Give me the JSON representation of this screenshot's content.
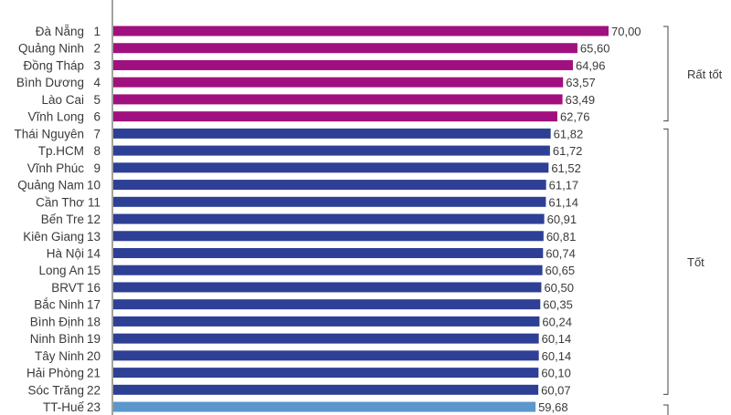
{
  "chart_data": {
    "type": "bar",
    "orientation": "horizontal",
    "provinces": [
      "Đà Nẵng",
      "Quảng Ninh",
      "Đồng Tháp",
      "Bình Dương",
      "Lào Cai",
      "Vĩnh Long",
      "Thái Nguyên",
      "Tp.HCM",
      "Vĩnh Phúc",
      "Quảng Nam",
      "Cần Thơ",
      "Bến Tre",
      "Kiên Giang",
      "Hà Nội",
      "Long An",
      "BRVT",
      "Bắc Ninh",
      "Bình Định",
      "Ninh Bình",
      "Tây Ninh",
      "Hải Phòng",
      "Sóc Trăng",
      "TT-Huế"
    ],
    "ranks": [
      "1",
      "2",
      "3",
      "4",
      "5",
      "6",
      "7",
      "8",
      "9",
      "10",
      "11",
      "12",
      "13",
      "14",
      "15",
      "16",
      "17",
      "18",
      "19",
      "20",
      "21",
      "22",
      "23"
    ],
    "values": [
      70.0,
      65.6,
      64.96,
      63.57,
      63.49,
      62.76,
      61.82,
      61.72,
      61.52,
      61.17,
      61.14,
      60.91,
      60.81,
      60.74,
      60.65,
      60.5,
      60.35,
      60.24,
      60.14,
      60.14,
      60.1,
      60.07,
      59.68
    ],
    "value_labels": [
      "70,00",
      "65,60",
      "64,96",
      "63,57",
      "63,49",
      "62,76",
      "61,82",
      "61,72",
      "61,52",
      "61,17",
      "61,14",
      "60,91",
      "60,81",
      "60,74",
      "60,65",
      "60,50",
      "60,35",
      "60,24",
      "60,14",
      "60,14",
      "60,10",
      "60,07",
      "59,68"
    ],
    "groups": [
      {
        "name": "Rất tốt",
        "from": 0,
        "to": 5,
        "color": "#a0107e"
      },
      {
        "name": "Tốt",
        "from": 6,
        "to": 21,
        "color": "#2e3f96"
      },
      {
        "name": "",
        "from": 22,
        "to": 22,
        "color": "#5b96cc"
      }
    ],
    "xlim": [
      0,
      70
    ],
    "grid": false,
    "legend": "none"
  }
}
